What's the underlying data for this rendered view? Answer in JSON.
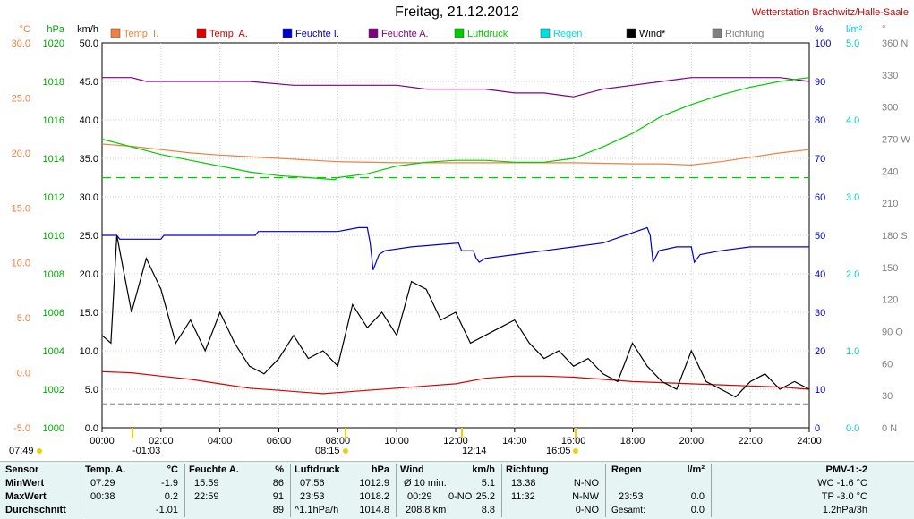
{
  "title": "Freitag, 21.12.2012",
  "station": "Wetterstation Brachwitz/Halle-Saale",
  "legend": [
    {
      "label": "Temp. I.",
      "color": "#f08040"
    },
    {
      "label": "Temp. A.",
      "color": "#dd0000"
    },
    {
      "label": "Feuchte I.",
      "color": "#0000cc"
    },
    {
      "label": "Feuchte A.",
      "color": "#800080"
    },
    {
      "label": "Luftdruck",
      "color": "#00cc00"
    },
    {
      "label": "Regen",
      "color": "#00e0e0"
    },
    {
      "label": "Wind*",
      "color": "#000000"
    },
    {
      "label": "Richtung",
      "color": "#808080"
    }
  ],
  "axes": {
    "temp": {
      "unit": "°C",
      "ticks": [
        "30.0",
        "25.0",
        "20.0",
        "15.0",
        "10.0",
        "5.0",
        "0.0",
        "-5.0"
      ],
      "color": "#f08040"
    },
    "hpa": {
      "unit": "hPa",
      "ticks": [
        "1020",
        "1018",
        "1016",
        "1014",
        "1012",
        "1010",
        "1008",
        "1006",
        "1004",
        "1002",
        "1000"
      ],
      "color": "#00aa00"
    },
    "kmh": {
      "unit": "km/h",
      "ticks": [
        "50.0",
        "45.0",
        "40.0",
        "35.0",
        "30.0",
        "25.0",
        "20.0",
        "15.0",
        "10.0",
        "5.0",
        "0.0"
      ],
      "color": "#000000"
    },
    "pct": {
      "unit": "%",
      "ticks": [
        "100",
        "90",
        "80",
        "70",
        "60",
        "50",
        "40",
        "30",
        "20",
        "10",
        "0"
      ],
      "color": "#0000cc"
    },
    "rain": {
      "unit": "l/m²",
      "ticks": [
        "5.0",
        "4.0",
        "3.0",
        "2.0",
        "1.0",
        "0.0"
      ],
      "color": "#00cccc"
    },
    "dir": {
      "unit": "°",
      "ticks": [
        "360 N",
        "330",
        "300",
        "270 W",
        "240",
        "210",
        "180 S",
        "150",
        "120",
        "90 O",
        "60",
        "30",
        "0 N"
      ],
      "color": "#808080"
    },
    "time": [
      "00:00",
      "02:00",
      "04:00",
      "06:00",
      "08:00",
      "10:00",
      "12:00",
      "14:00",
      "16:00",
      "18:00",
      "20:00",
      "22:00",
      "24:00"
    ]
  },
  "sun": {
    "rise_label": "07:49",
    "set_label": "16:05",
    "moon1": "-01:03",
    "moon2": "08:15",
    "moon3": "12:14"
  },
  "stats": {
    "sensor": {
      "head": "Sensor",
      "min": "MinWert",
      "max": "MaxWert",
      "avg": "Durchschnitt"
    },
    "temp": {
      "head": "Temp. A.",
      "unit": "°C",
      "min_t": "07:29",
      "min_v": "-1.9",
      "max_t": "00:38",
      "max_v": "0.2",
      "avg_v": "-1.01"
    },
    "hum": {
      "head": "Feuchte A.",
      "unit": "%",
      "min_t": "15:59",
      "min_v": "86",
      "max_t": "22:59",
      "max_v": "91",
      "avg_v": "89"
    },
    "press": {
      "head": "Luftdruck",
      "unit": "hPa",
      "min_t": "07:56",
      "min_v": "1012.9",
      "max_t": "23:53",
      "max_v": "1018.2",
      "avg_t": "^1.1hPa/h",
      "avg_v": "1014.8"
    },
    "wind": {
      "head": "Wind",
      "unit": "km/h",
      "min_t": "Ø 10 min.",
      "min_v": "5.1",
      "max_t": "00:29",
      "max_d": "0-NO",
      "max_v": "25.2",
      "avg_t": "208.8 km",
      "avg_v": "8.8"
    },
    "dir": {
      "head": "Richtung",
      "min_t": "13:38",
      "min_v": "N-NO",
      "max_t": "11:32",
      "max_v": "N-NW",
      "avg_v": "0-NO"
    },
    "rain": {
      "head": "Regen",
      "unit": "l/m²",
      "max_t": "23:53",
      "max_v": "0.0",
      "avg_t": "Gesamt:",
      "avg_v": "0.0"
    },
    "pmv": {
      "head": "PMV-1:-2",
      "wc": "WC -1.6 °C",
      "tp": "TP -3.0 °C",
      "tr": "1.2hPa/3h"
    }
  },
  "chart_data": {
    "type": "line",
    "x_unit": "hour",
    "xlim": [
      0,
      24
    ],
    "series": [
      {
        "name": "Temp. I.",
        "axis": "temp",
        "points": [
          [
            0,
            20.8
          ],
          [
            1,
            20.6
          ],
          [
            2,
            20.3
          ],
          [
            3,
            20.0
          ],
          [
            4,
            19.8
          ],
          [
            6,
            19.5
          ],
          [
            8,
            19.2
          ],
          [
            10,
            19.1
          ],
          [
            12,
            19.1
          ],
          [
            14,
            19.1
          ],
          [
            16,
            19.1
          ],
          [
            18,
            19.0
          ],
          [
            19,
            19.0
          ],
          [
            20,
            18.9
          ],
          [
            21,
            19.2
          ],
          [
            22,
            19.6
          ],
          [
            23,
            20.0
          ],
          [
            24,
            20.3
          ]
        ]
      },
      {
        "name": "Temp. A.",
        "axis": "temp",
        "points": [
          [
            0,
            0.1
          ],
          [
            1,
            0.0
          ],
          [
            2,
            -0.3
          ],
          [
            3,
            -0.6
          ],
          [
            4,
            -1.0
          ],
          [
            5,
            -1.4
          ],
          [
            6,
            -1.6
          ],
          [
            7,
            -1.8
          ],
          [
            7.5,
            -1.9
          ],
          [
            8,
            -1.8
          ],
          [
            9,
            -1.6
          ],
          [
            10,
            -1.4
          ],
          [
            11,
            -1.2
          ],
          [
            12,
            -1.0
          ],
          [
            13,
            -0.5
          ],
          [
            14,
            -0.3
          ],
          [
            15,
            -0.3
          ],
          [
            16,
            -0.4
          ],
          [
            17,
            -0.6
          ],
          [
            18,
            -0.8
          ],
          [
            19,
            -0.9
          ],
          [
            20,
            -1.0
          ],
          [
            21,
            -1.1
          ],
          [
            22,
            -1.2
          ],
          [
            23,
            -1.3
          ],
          [
            24,
            -1.5
          ]
        ]
      },
      {
        "name": "Feuchte I.",
        "axis": "pct",
        "points": [
          [
            0,
            50
          ],
          [
            0.5,
            50
          ],
          [
            0.6,
            49
          ],
          [
            2,
            49
          ],
          [
            2.1,
            50
          ],
          [
            5.2,
            50
          ],
          [
            5.3,
            51
          ],
          [
            8,
            51
          ],
          [
            8.7,
            52
          ],
          [
            9.0,
            52
          ],
          [
            9.1,
            48
          ],
          [
            9.2,
            41
          ],
          [
            9.4,
            45
          ],
          [
            9.6,
            46
          ],
          [
            10.5,
            47
          ],
          [
            12.1,
            48
          ],
          [
            12.2,
            46
          ],
          [
            12.6,
            46
          ],
          [
            12.7,
            44
          ],
          [
            12.8,
            43
          ],
          [
            13.0,
            44
          ],
          [
            14.0,
            45
          ],
          [
            15.0,
            46
          ],
          [
            16.0,
            47
          ],
          [
            17.0,
            48
          ],
          [
            18.5,
            52
          ],
          [
            18.6,
            50
          ],
          [
            18.7,
            43
          ],
          [
            18.9,
            46
          ],
          [
            19.5,
            47
          ],
          [
            20.0,
            47
          ],
          [
            20.1,
            43
          ],
          [
            20.3,
            45
          ],
          [
            21.0,
            46
          ],
          [
            22.0,
            47
          ],
          [
            23.0,
            47
          ],
          [
            24,
            47
          ]
        ]
      },
      {
        "name": "Feuchte A.",
        "axis": "pct",
        "points": [
          [
            0,
            91
          ],
          [
            1,
            91
          ],
          [
            1.5,
            90
          ],
          [
            3,
            90
          ],
          [
            5,
            90
          ],
          [
            6.5,
            89
          ],
          [
            8,
            89
          ],
          [
            9,
            89
          ],
          [
            10,
            89
          ],
          [
            11,
            88
          ],
          [
            12,
            88
          ],
          [
            13,
            88
          ],
          [
            14,
            87
          ],
          [
            15,
            87
          ],
          [
            16,
            86
          ],
          [
            17,
            88
          ],
          [
            18,
            89
          ],
          [
            19,
            90
          ],
          [
            20,
            91
          ],
          [
            21,
            91
          ],
          [
            22,
            91
          ],
          [
            23,
            91
          ],
          [
            24,
            90
          ]
        ]
      },
      {
        "name": "Luftdruck",
        "axis": "hpa",
        "points": [
          [
            0,
            1015.0
          ],
          [
            1,
            1014.6
          ],
          [
            2,
            1014.2
          ],
          [
            3,
            1013.9
          ],
          [
            4,
            1013.6
          ],
          [
            5,
            1013.3
          ],
          [
            6,
            1013.1
          ],
          [
            7,
            1013.0
          ],
          [
            7.9,
            1012.9
          ],
          [
            8,
            1013.0
          ],
          [
            9,
            1013.2
          ],
          [
            10,
            1013.6
          ],
          [
            11,
            1013.8
          ],
          [
            12,
            1013.9
          ],
          [
            13,
            1013.9
          ],
          [
            14,
            1013.8
          ],
          [
            15,
            1013.8
          ],
          [
            16,
            1014.0
          ],
          [
            17,
            1014.6
          ],
          [
            18,
            1015.3
          ],
          [
            19,
            1016.2
          ],
          [
            20,
            1016.8
          ],
          [
            21,
            1017.3
          ],
          [
            22,
            1017.7
          ],
          [
            23,
            1018.0
          ],
          [
            24,
            1018.2
          ]
        ]
      },
      {
        "name": "Wind*",
        "axis": "kmh",
        "points": [
          [
            0,
            12
          ],
          [
            0.3,
            11
          ],
          [
            0.5,
            25
          ],
          [
            1,
            15
          ],
          [
            1.5,
            22
          ],
          [
            2,
            18
          ],
          [
            2.5,
            11
          ],
          [
            3,
            14
          ],
          [
            3.5,
            10
          ],
          [
            4,
            15
          ],
          [
            4.5,
            11
          ],
          [
            5,
            8
          ],
          [
            5.5,
            7
          ],
          [
            6,
            9
          ],
          [
            6.5,
            12
          ],
          [
            7,
            9
          ],
          [
            7.5,
            10
          ],
          [
            8,
            8
          ],
          [
            8.5,
            16
          ],
          [
            9,
            13
          ],
          [
            9.5,
            15
          ],
          [
            10,
            12
          ],
          [
            10.5,
            19
          ],
          [
            11,
            18
          ],
          [
            11.5,
            14
          ],
          [
            12,
            15
          ],
          [
            12.5,
            11
          ],
          [
            13,
            12
          ],
          [
            13.5,
            13
          ],
          [
            14,
            14
          ],
          [
            14.5,
            11
          ],
          [
            15,
            9
          ],
          [
            15.5,
            10
          ],
          [
            16,
            8
          ],
          [
            16.5,
            9
          ],
          [
            17,
            7
          ],
          [
            17.5,
            6
          ],
          [
            18,
            11
          ],
          [
            18.5,
            8
          ],
          [
            19,
            6
          ],
          [
            19.5,
            5
          ],
          [
            20,
            10
          ],
          [
            20.5,
            6
          ],
          [
            21,
            5
          ],
          [
            21.5,
            4
          ],
          [
            22,
            6
          ],
          [
            22.5,
            7
          ],
          [
            23,
            5
          ],
          [
            23.5,
            6
          ],
          [
            24,
            5
          ]
        ]
      },
      {
        "name": "Richtung",
        "axis": "dir",
        "points": [
          [
            0,
            22
          ],
          [
            4,
            22
          ],
          [
            8,
            22
          ],
          [
            12,
            22
          ],
          [
            16,
            22
          ],
          [
            20,
            22
          ],
          [
            24,
            22
          ]
        ]
      }
    ],
    "reference_lines": [
      {
        "axis": "hpa",
        "value": 1013.0,
        "color": "#00cc00",
        "style": "dash"
      }
    ]
  }
}
